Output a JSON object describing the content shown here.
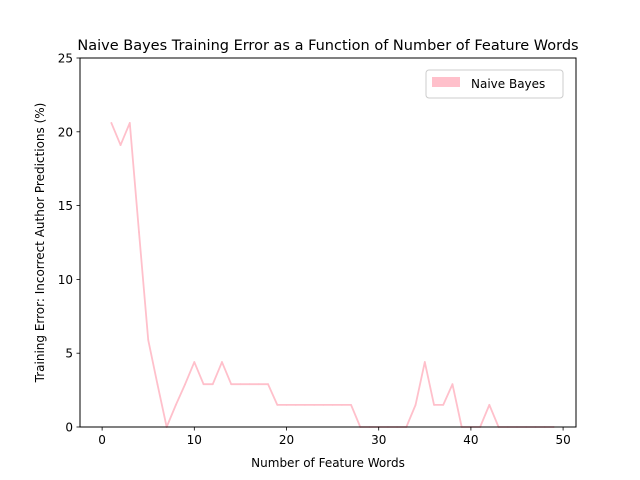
{
  "chart_data": {
    "type": "line",
    "title": "Naive Bayes Training Error as a Function of Number of Feature Words",
    "xlabel": "Number of Feature Words",
    "ylabel": "Training Error: Incorrect Author Predictions (%)",
    "xlim": [
      -2.4,
      51.4
    ],
    "ylim": [
      0,
      25
    ],
    "xticks": [
      0,
      10,
      20,
      30,
      40,
      50
    ],
    "yticks": [
      0,
      5,
      10,
      15,
      20,
      25
    ],
    "grid": false,
    "legend_position": "top-right",
    "series": [
      {
        "name": "Naive Bayes",
        "color": "#ffc0cb",
        "x": [
          1,
          2,
          3,
          4,
          5,
          6,
          7,
          8,
          9,
          10,
          11,
          12,
          13,
          14,
          15,
          16,
          17,
          18,
          19,
          20,
          21,
          22,
          23,
          24,
          25,
          26,
          27,
          28,
          29,
          30,
          31,
          32,
          33,
          34,
          35,
          36,
          37,
          38,
          39,
          40,
          41,
          42,
          43,
          44,
          45,
          46,
          47,
          48,
          49
        ],
        "y": [
          20.6,
          19.1,
          20.6,
          13.2,
          5.9,
          2.9,
          0,
          1.5,
          2.9,
          4.4,
          2.9,
          2.9,
          4.4,
          2.9,
          2.9,
          2.9,
          2.9,
          2.9,
          1.5,
          1.5,
          1.5,
          1.5,
          1.5,
          1.5,
          1.5,
          1.5,
          1.5,
          0,
          0,
          0,
          0,
          0,
          0,
          1.5,
          4.4,
          1.5,
          1.5,
          2.9,
          0,
          0,
          0,
          1.5,
          0,
          0,
          0,
          0,
          0,
          0,
          0
        ]
      }
    ]
  }
}
